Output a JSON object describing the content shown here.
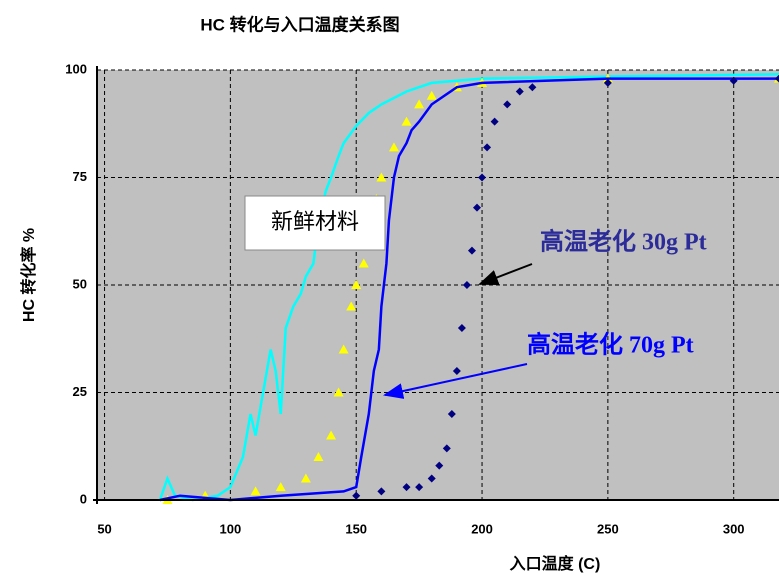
{
  "chart_data": {
    "type": "line",
    "title": "HC 转化与入口温度关系图",
    "x_label": "入口温度 (C)",
    "y_label": "HC 转化率 %",
    "xlim": [
      47,
      318
    ],
    "ylim": [
      0,
      100
    ],
    "xticks": [
      50,
      100,
      150,
      200,
      250,
      300
    ],
    "yticks": [
      0,
      25,
      50,
      75,
      100
    ],
    "grid": true,
    "annotations": [
      "新鲜材料",
      "高温老化 30g Pt",
      "高温老化 70g Pt"
    ],
    "series": [
      {
        "color": "#00ffff",
        "marker": "none",
        "x": [
          72,
          75,
          78,
          85,
          95,
          100,
          105,
          108,
          110,
          113,
          116,
          118,
          120,
          122,
          125,
          128,
          130,
          133,
          135,
          138,
          140,
          143,
          145,
          150,
          155,
          160,
          170,
          180,
          200,
          250,
          318
        ],
        "values": [
          0,
          5,
          1,
          0,
          1,
          3,
          10,
          20,
          15,
          25,
          35,
          30,
          20,
          40,
          45,
          48,
          52,
          55,
          65,
          72,
          75,
          80,
          83,
          87,
          90,
          92,
          95,
          97,
          98,
          98.5,
          99
        ]
      },
      {
        "color": "#ffff00",
        "marker": "triangle",
        "x": [
          75,
          90,
          110,
          120,
          130,
          135,
          140,
          143,
          145,
          148,
          150,
          153,
          155,
          158,
          160,
          165,
          170,
          175,
          180,
          190,
          200,
          250,
          318
        ],
        "values": [
          0,
          1,
          2,
          3,
          5,
          10,
          15,
          25,
          35,
          45,
          50,
          55,
          63,
          70,
          75,
          82,
          88,
          92,
          94,
          96,
          97,
          98,
          98
        ]
      },
      {
        "color": "#0000ff",
        "marker": "none",
        "x": [
          72,
          80,
          100,
          120,
          145,
          150,
          152,
          155,
          157,
          159,
          160,
          162,
          163,
          165,
          167,
          170,
          172,
          175,
          180,
          190,
          200,
          250,
          318
        ],
        "values": [
          0,
          1,
          0,
          1,
          2,
          3,
          10,
          20,
          30,
          35,
          45,
          55,
          65,
          75,
          80,
          83,
          86,
          88,
          92,
          96,
          97,
          98,
          98
        ]
      },
      {
        "color": "#000080",
        "marker": "diamond",
        "x": [
          150,
          160,
          170,
          175,
          180,
          183,
          186,
          188,
          190,
          192,
          194,
          196,
          198,
          200,
          202,
          205,
          210,
          215,
          220,
          250,
          300,
          318
        ],
        "values": [
          1,
          2,
          3,
          3,
          5,
          8,
          12,
          20,
          30,
          40,
          50,
          58,
          68,
          75,
          82,
          88,
          92,
          95,
          96,
          97,
          97.5,
          98
        ]
      }
    ]
  }
}
